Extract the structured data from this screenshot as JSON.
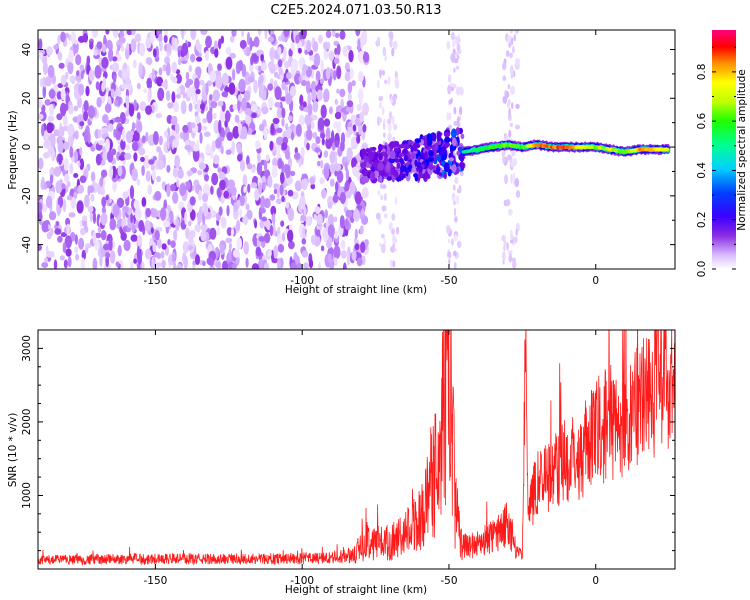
{
  "title": "C2E5.2024.071.03.50.R13",
  "chart_data": [
    {
      "type": "heatmap",
      "name": "spectrogram",
      "xlabel": "Height of straight line (km)",
      "ylabel": "Frequency (Hz)",
      "xlim": [
        -190,
        27
      ],
      "ylim": [
        -50,
        48
      ],
      "xticks": [
        -150,
        -100,
        -50,
        0
      ],
      "yticks": [
        -40,
        -20,
        0,
        20,
        40
      ],
      "colorbar": {
        "label": "Normalized spectral amplitude",
        "range": [
          0.0,
          0.97
        ],
        "ticks": [
          0.0,
          0.2,
          0.4,
          0.6,
          0.8
        ],
        "colormap": [
          "#ffffff",
          "#c89bff",
          "#8a2be2",
          "#6a00e0",
          "#0000ff",
          "#00c8ff",
          "#00ff80",
          "#00ff00",
          "#c8ff00",
          "#ffff00",
          "#ffa000",
          "#ff0000",
          "#ff0080"
        ]
      },
      "regions": [
        {
          "description": "noise band",
          "x_range": [
            -190,
            -78
          ],
          "freq_range": [
            -50,
            48
          ],
          "amplitude": [
            0.0,
            0.15
          ]
        },
        {
          "description": "onset burst",
          "x_range": [
            -80,
            -45
          ],
          "freq_range": [
            -20,
            10
          ],
          "amplitude": [
            0.1,
            0.35
          ]
        },
        {
          "description": "signal trace",
          "x_range": [
            -45,
            27
          ],
          "freq_center": [
            1,
            0,
            1,
            -1,
            -1,
            -2
          ],
          "amplitude": [
            0.4,
            0.9
          ]
        }
      ],
      "trace": {
        "x": [
          -45,
          -40,
          -35,
          -30,
          -25,
          -20,
          -15,
          -10,
          -5,
          0,
          5,
          10,
          15,
          20,
          25
        ],
        "frequency": [
          -2,
          -1,
          0,
          1,
          0,
          1,
          0,
          0,
          0,
          0,
          -1,
          -2,
          -1,
          -1,
          -1
        ],
        "amplitude": [
          0.45,
          0.55,
          0.6,
          0.65,
          0.6,
          0.85,
          0.88,
          0.9,
          0.75,
          0.65,
          0.7,
          0.6,
          0.85,
          0.8,
          0.7
        ]
      }
    },
    {
      "type": "line",
      "name": "snr",
      "xlabel": "Height of straight line (km)",
      "ylabel": "SNR (10 * v/v)",
      "xlim": [
        -190,
        27
      ],
      "ylim": [
        0,
        3250
      ],
      "xticks": [
        -150,
        -100,
        -50,
        0
      ],
      "yticks": [
        1000,
        2000,
        3000
      ],
      "color": "#ff1a1a",
      "series": [
        {
          "name": "SNR",
          "x": [
            -190,
            -170,
            -150,
            -130,
            -110,
            -90,
            -82,
            -78,
            -72,
            -65,
            -58,
            -55,
            -52,
            -50,
            -49,
            -48,
            -46,
            -44,
            -40,
            -35,
            -30,
            -27,
            -25,
            -24,
            -23,
            -22,
            -20,
            -15,
            -10,
            -5,
            0,
            5,
            10,
            15,
            20,
            25,
            27
          ],
          "y": [
            120,
            130,
            140,
            135,
            140,
            150,
            200,
            400,
            350,
            450,
            800,
            1400,
            2000,
            2650,
            2400,
            900,
            400,
            300,
            350,
            450,
            600,
            300,
            150,
            3250,
            600,
            900,
            1200,
            1300,
            1500,
            1550,
            1850,
            2000,
            1900,
            2300,
            2500,
            2600,
            2700
          ]
        }
      ]
    }
  ]
}
